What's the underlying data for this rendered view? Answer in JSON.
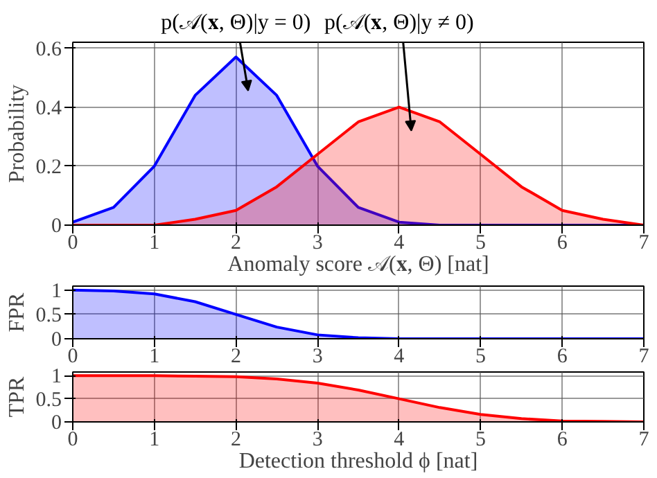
{
  "chart_data": [
    {
      "type": "area",
      "xlabel": "Anomaly score 𝒜(𝐱, Θ) [nat]",
      "ylabel": "Probability",
      "x": [
        0,
        0.5,
        1,
        1.5,
        2,
        2.5,
        3,
        3.5,
        4,
        4.5,
        5,
        5.5,
        6,
        6.5,
        7
      ],
      "series": [
        {
          "color": "#0000ff",
          "values": [
            0.01,
            0.06,
            0.2,
            0.44,
            0.57,
            0.44,
            0.2,
            0.06,
            0.01,
            0,
            0,
            0,
            0,
            0,
            0
          ]
        },
        {
          "color": "#ff0000",
          "values": [
            0,
            0,
            0,
            0.02,
            0.05,
            0.13,
            0.24,
            0.35,
            0.4,
            0.35,
            0.24,
            0.13,
            0.05,
            0.02,
            0
          ]
        }
      ],
      "annotations": [
        "p(𝒜(𝐱, Θ)|y = 0)",
        "p(𝒜(𝐱, Θ)|y ≠ 0)"
      ],
      "xlim": [
        0,
        7
      ],
      "ylim": [
        0,
        0.62
      ],
      "xticks": [
        0,
        1,
        2,
        3,
        4,
        5,
        6,
        7
      ],
      "yticks": [
        0,
        0.2,
        0.4,
        0.6
      ],
      "grid": true
    },
    {
      "type": "area",
      "ylabel": "FPR",
      "x": [
        0,
        0.5,
        1,
        1.5,
        2,
        2.5,
        3,
        3.5,
        4,
        4.5,
        5,
        5.5,
        6,
        6.5,
        7
      ],
      "series": [
        {
          "color": "#0000ff",
          "values": [
            1,
            0.98,
            0.92,
            0.76,
            0.5,
            0.24,
            0.08,
            0.02,
            0,
            0,
            0,
            0,
            0,
            0,
            0
          ]
        }
      ],
      "xlim": [
        0,
        7
      ],
      "ylim": [
        0,
        1.08
      ],
      "xticks": [
        0,
        1,
        2,
        3,
        4,
        5,
        6,
        7
      ],
      "yticks": [
        0,
        0.5,
        1
      ],
      "grid": true
    },
    {
      "type": "area",
      "ylabel": "TPR",
      "xlabel": "Detection threshold ϕ [nat]",
      "x": [
        0,
        0.5,
        1,
        1.5,
        2,
        2.5,
        3,
        3.5,
        4,
        4.5,
        5,
        5.5,
        6,
        6.5,
        7
      ],
      "series": [
        {
          "color": "#ff0000",
          "values": [
            1,
            1,
            1,
            0.99,
            0.98,
            0.93,
            0.84,
            0.69,
            0.5,
            0.31,
            0.16,
            0.07,
            0.02,
            0.01,
            0
          ]
        }
      ],
      "xlim": [
        0,
        7
      ],
      "ylim": [
        0,
        1.08
      ],
      "xticks": [
        0,
        1,
        2,
        3,
        4,
        5,
        6,
        7
      ],
      "yticks": [
        0,
        0.5,
        1
      ],
      "grid": true
    }
  ]
}
